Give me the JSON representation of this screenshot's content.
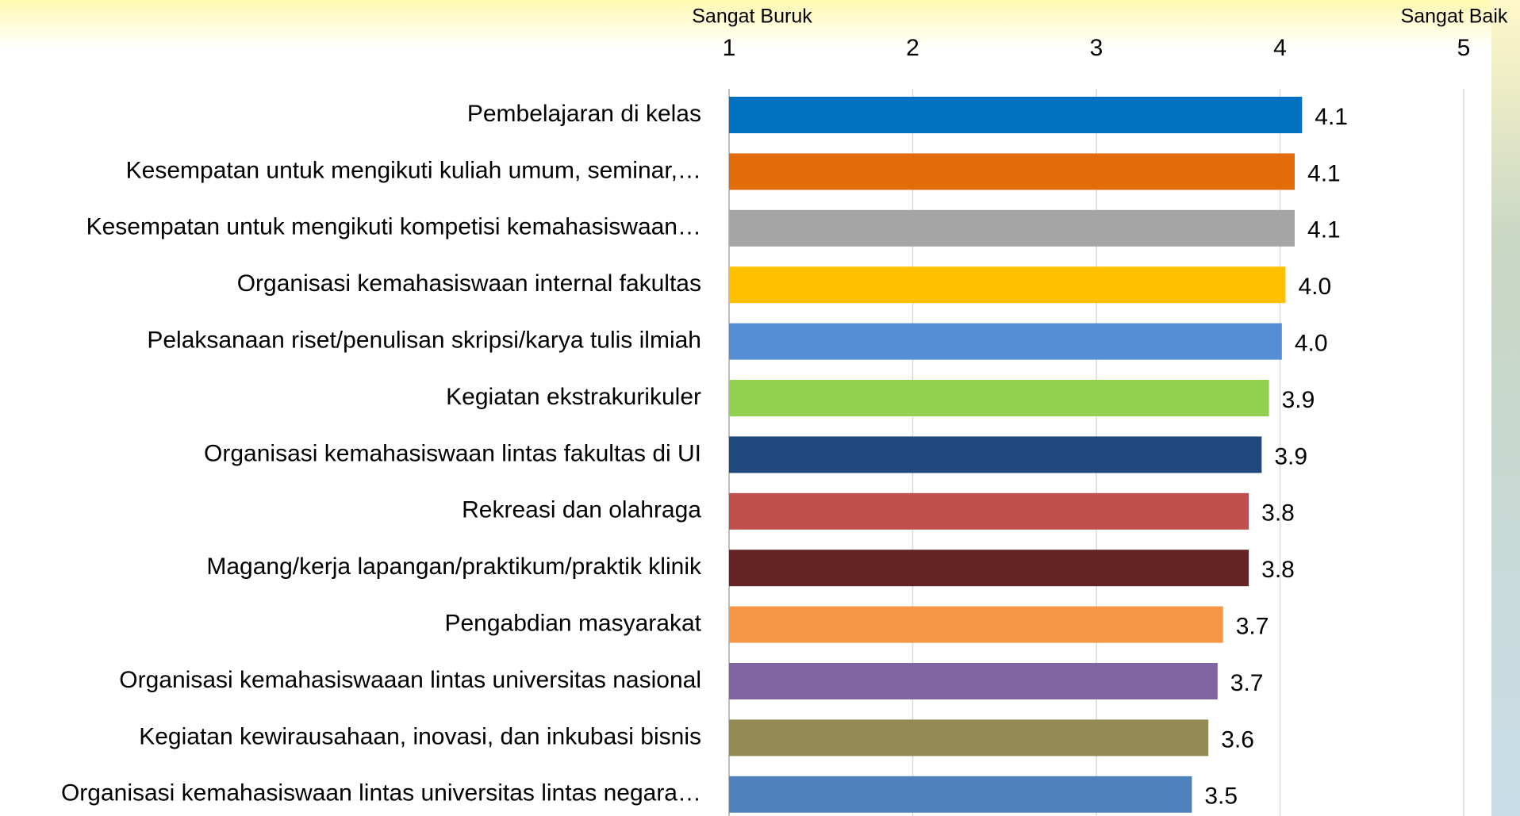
{
  "chart_data": {
    "type": "hbar",
    "annotations": [
      "Sangat Buruk",
      "Sangat Baik"
    ],
    "categories": [
      "Pembelajaran di kelas",
      "Kesempatan untuk mengikuti kuliah umum, seminar,…",
      "Kesempatan untuk mengikuti kompetisi kemahasiswaan…",
      "Organisasi kemahasiswaan internal fakultas",
      "Pelaksanaan riset/penulisan skripsi/karya tulis ilmiah",
      "Kegiatan ekstrakurikuler",
      "Organisasi kemahasiswaan lintas fakultas di UI",
      "Rekreasi dan olahraga",
      "Magang/kerja lapangan/praktikum/praktik klinik",
      "Pengabdian masyarakat",
      "Organisasi kemahasiswaaan lintas universitas nasional",
      "Kegiatan kewirausahaan, inovasi, dan inkubasi bisnis",
      "Organisasi kemahasiswaan lintas universitas lintas negara…"
    ],
    "values": [
      4.12,
      4.08,
      4.08,
      4.03,
      4.01,
      3.94,
      3.9,
      3.83,
      3.83,
      3.69,
      3.66,
      3.61,
      3.52
    ],
    "value_labels": [
      "4.1",
      "4.1",
      "4.1",
      "4.0",
      "4.0",
      "3.9",
      "3.9",
      "3.8",
      "3.8",
      "3.7",
      "3.7",
      "3.6",
      "3.5"
    ],
    "colors": [
      "#0070c0",
      "#e36c0a",
      "#a5a5a5",
      "#ffc000",
      "#558ed5",
      "#92d050",
      "#1f497d",
      "#c0504d",
      "#632423",
      "#f79646",
      "#8064a2",
      "#948a54",
      "#4f81bd"
    ],
    "xlim": [
      1,
      5
    ],
    "xticks": [
      1,
      2,
      3,
      4,
      5
    ],
    "grid": true
  }
}
